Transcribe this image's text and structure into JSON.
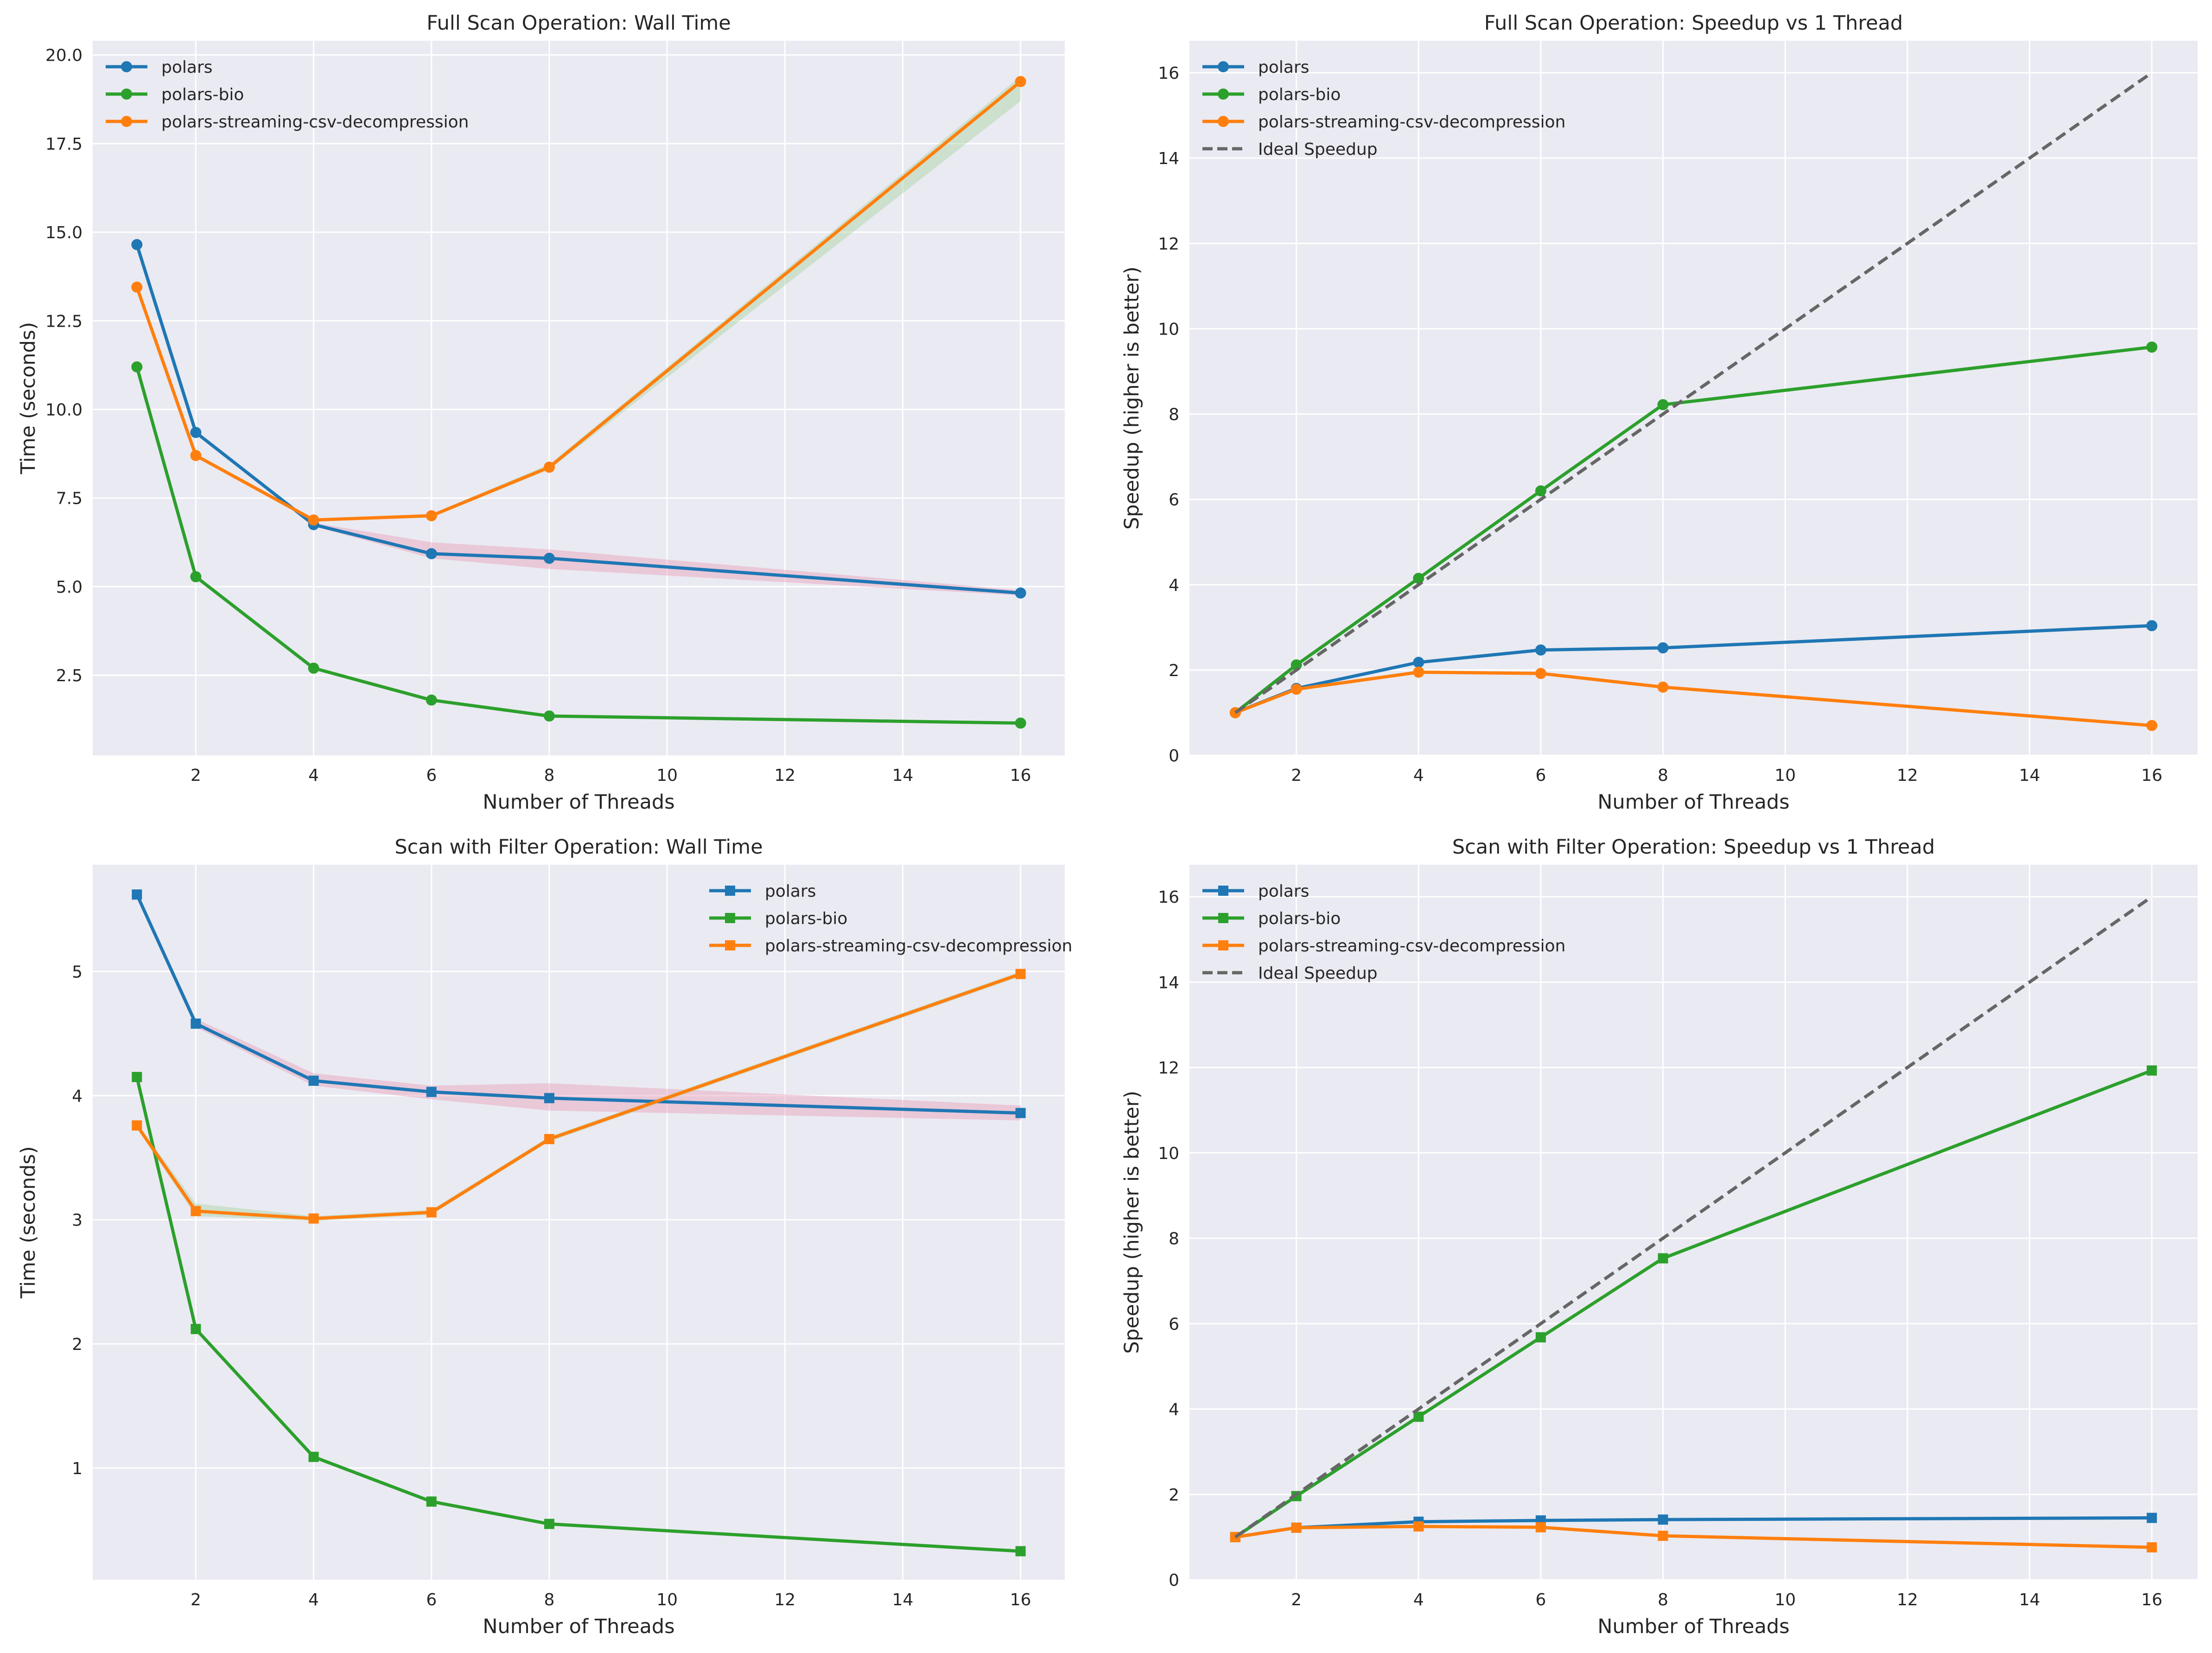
{
  "colors": {
    "polars": "#1f77b4",
    "polars-bio": "#2ca02c",
    "polars-streaming-csv-decompression": "#ff7f0e",
    "ideal": "#666666",
    "axes_bg": "#eaeaf2",
    "grid": "#ffffff",
    "band_pink": "#e8a0b8",
    "band_green": "#a8d5a0"
  },
  "chart_data": [
    {
      "type": "line",
      "title": "Full Scan Operation: Wall Time",
      "xlabel": "Number of Threads",
      "ylabel": "Time (seconds)",
      "marker": "circle",
      "xlim": [
        0.25,
        16.75
      ],
      "ylim": [
        0.24,
        20.4
      ],
      "xticks": [
        2,
        4,
        6,
        8,
        10,
        12,
        14,
        16
      ],
      "yticks": [
        2.5,
        5.0,
        7.5,
        10.0,
        12.5,
        15.0,
        17.5,
        20.0
      ],
      "ytick_labels": [
        "2.5",
        "5.0",
        "7.5",
        "10.0",
        "12.5",
        "15.0",
        "17.5",
        "20.0"
      ],
      "legend_position": "upper-left",
      "x": [
        1,
        2,
        4,
        6,
        8,
        16
      ],
      "series": [
        {
          "name": "polars",
          "values": [
            14.65,
            9.35,
            6.75,
            5.93,
            5.8,
            4.82
          ],
          "band": {
            "lower": [
              14.6,
              9.3,
              6.7,
              5.8,
              5.5,
              4.75
            ],
            "upper": [
              14.7,
              9.4,
              6.8,
              6.25,
              6.05,
              4.9
            ],
            "color": "band_pink"
          }
        },
        {
          "name": "polars-bio",
          "values": [
            11.2,
            5.28,
            2.7,
            1.8,
            1.35,
            1.15
          ]
        },
        {
          "name": "polars-streaming-csv-decompression",
          "values": [
            13.45,
            8.7,
            6.88,
            7.0,
            8.37,
            19.25
          ],
          "band": {
            "lower": [
              13.4,
              8.65,
              6.85,
              6.95,
              8.3,
              18.7
            ],
            "upper": [
              13.5,
              8.75,
              6.92,
              7.05,
              8.45,
              19.4
            ],
            "color": "band_green"
          }
        }
      ]
    },
    {
      "type": "line",
      "title": "Full Scan Operation: Speedup vs 1 Thread",
      "xlabel": "Number of Threads",
      "ylabel": "Speedup (higher is better)",
      "marker": "circle",
      "xlim": [
        0.25,
        16.75
      ],
      "ylim": [
        0,
        16.75
      ],
      "xticks": [
        2,
        4,
        6,
        8,
        10,
        12,
        14,
        16
      ],
      "yticks": [
        0,
        2,
        4,
        6,
        8,
        10,
        12,
        14,
        16
      ],
      "ytick_labels": [
        "0",
        "2",
        "4",
        "6",
        "8",
        "10",
        "12",
        "14",
        "16"
      ],
      "legend_position": "upper-left",
      "x": [
        1,
        2,
        4,
        6,
        8,
        16
      ],
      "series": [
        {
          "name": "polars",
          "values": [
            1.0,
            1.57,
            2.18,
            2.47,
            2.52,
            3.04
          ]
        },
        {
          "name": "polars-bio",
          "values": [
            1.0,
            2.12,
            4.15,
            6.2,
            8.22,
            9.57
          ]
        },
        {
          "name": "polars-streaming-csv-decompression",
          "values": [
            1.0,
            1.55,
            1.95,
            1.92,
            1.6,
            0.7
          ]
        },
        {
          "name": "Ideal Speedup",
          "values": [
            1,
            2,
            4,
            6,
            8,
            16
          ],
          "dashed": true
        }
      ]
    },
    {
      "type": "line",
      "title": "Scan with Filter Operation: Wall Time",
      "xlabel": "Number of Threads",
      "ylabel": "Time (seconds)",
      "marker": "square",
      "xlim": [
        0.25,
        16.75
      ],
      "ylim": [
        0.1,
        5.86
      ],
      "xticks": [
        2,
        4,
        6,
        8,
        10,
        12,
        14,
        16
      ],
      "yticks": [
        1,
        2,
        3,
        4,
        5
      ],
      "ytick_labels": [
        "1",
        "2",
        "3",
        "4",
        "5"
      ],
      "legend_position": "upper-right",
      "x": [
        1,
        2,
        4,
        6,
        8,
        16
      ],
      "series": [
        {
          "name": "polars",
          "values": [
            5.62,
            4.58,
            4.12,
            4.03,
            3.98,
            3.86
          ],
          "band": {
            "lower": [
              5.6,
              4.55,
              4.08,
              3.97,
              3.88,
              3.8
            ],
            "upper": [
              5.64,
              4.62,
              4.18,
              4.08,
              4.1,
              3.92
            ],
            "color": "band_pink"
          }
        },
        {
          "name": "polars-bio",
          "values": [
            4.15,
            2.12,
            1.09,
            0.73,
            0.55,
            0.33
          ]
        },
        {
          "name": "polars-streaming-csv-decompression",
          "values": [
            3.76,
            3.07,
            3.01,
            3.06,
            3.65,
            4.98
          ],
          "band": {
            "lower": [
              3.74,
              3.03,
              2.99,
              3.04,
              3.63,
              4.96
            ],
            "upper": [
              3.78,
              3.13,
              3.03,
              3.08,
              3.67,
              5.0
            ],
            "color": "band_green"
          }
        }
      ]
    },
    {
      "type": "line",
      "title": "Scan with Filter Operation: Speedup vs 1 Thread",
      "xlabel": "Number of Threads",
      "ylabel": "Speedup (higher is better)",
      "marker": "square",
      "xlim": [
        0.25,
        16.75
      ],
      "ylim": [
        0,
        16.75
      ],
      "xticks": [
        2,
        4,
        6,
        8,
        10,
        12,
        14,
        16
      ],
      "yticks": [
        0,
        2,
        4,
        6,
        8,
        10,
        12,
        14,
        16
      ],
      "ytick_labels": [
        "0",
        "2",
        "4",
        "6",
        "8",
        "10",
        "12",
        "14",
        "16"
      ],
      "legend_position": "upper-left",
      "x": [
        1,
        2,
        4,
        6,
        8,
        16
      ],
      "series": [
        {
          "name": "polars",
          "values": [
            1.0,
            1.22,
            1.36,
            1.39,
            1.41,
            1.45
          ]
        },
        {
          "name": "polars-bio",
          "values": [
            1.0,
            1.96,
            3.82,
            5.68,
            7.53,
            11.93
          ]
        },
        {
          "name": "polars-streaming-csv-decompression",
          "values": [
            1.0,
            1.22,
            1.25,
            1.23,
            1.03,
            0.76
          ]
        },
        {
          "name": "Ideal Speedup",
          "values": [
            1,
            2,
            4,
            6,
            8,
            16
          ],
          "dashed": true
        }
      ]
    }
  ]
}
